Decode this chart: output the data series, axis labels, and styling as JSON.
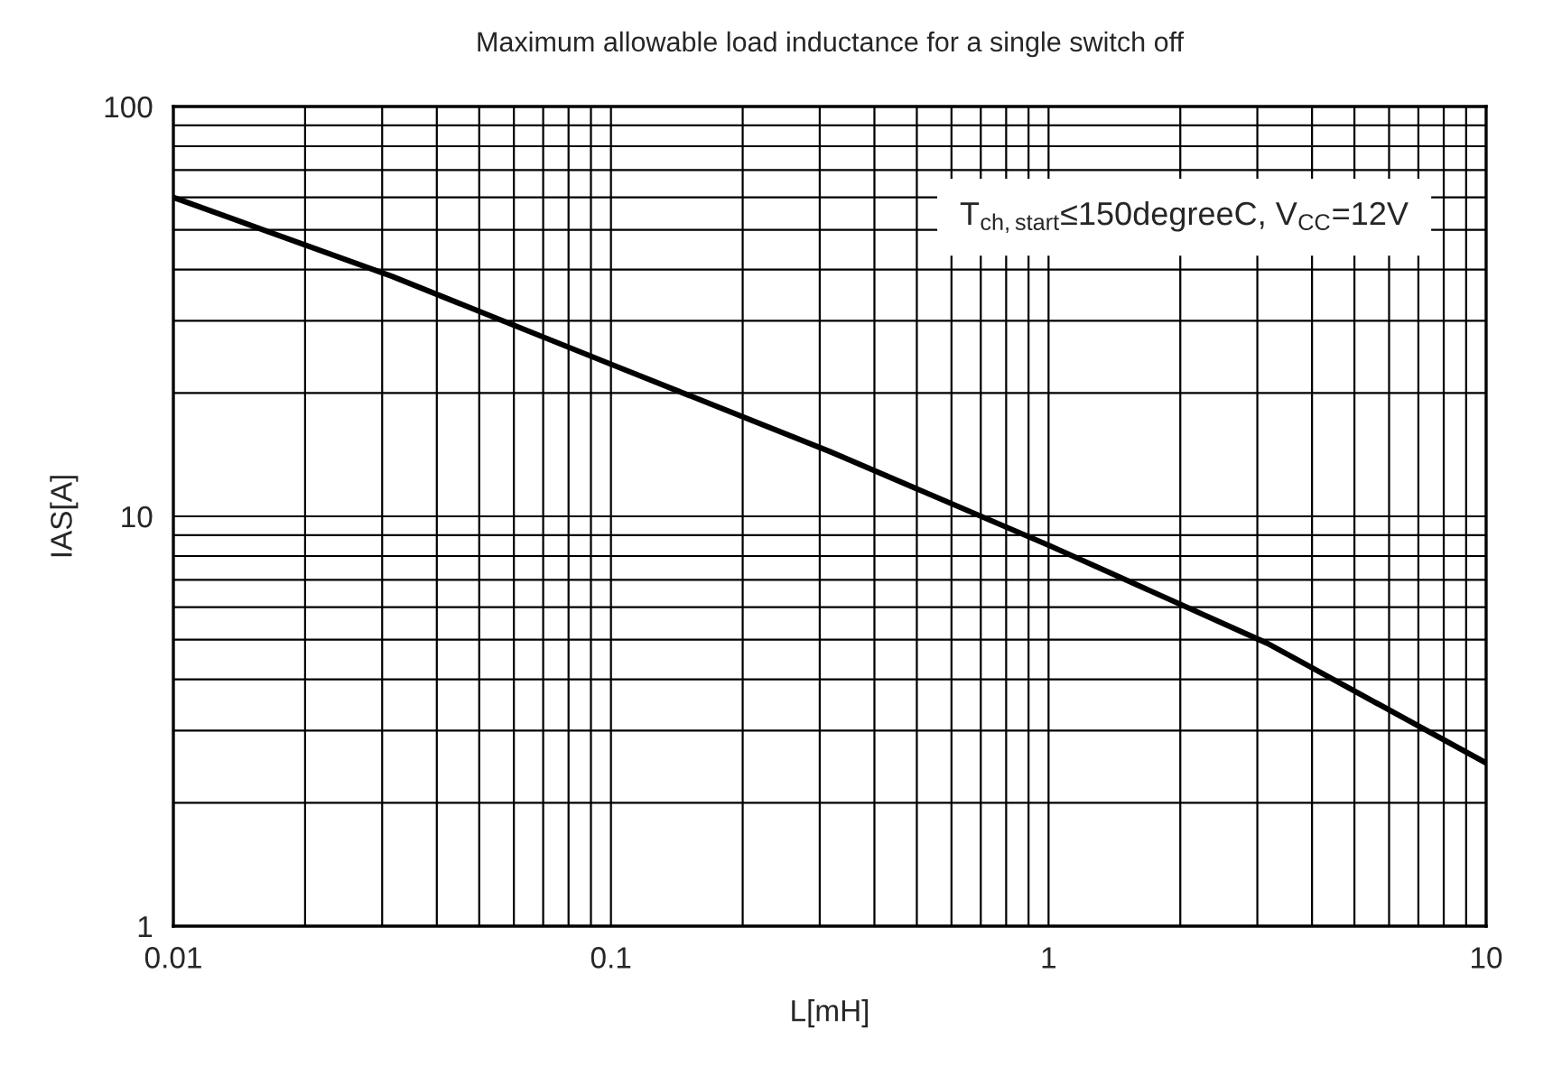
{
  "chart_data": {
    "type": "line",
    "title": "Maximum allowable load inductance for a single switch off",
    "xlabel": "L[mH]",
    "ylabel": "IAS[A]",
    "annotations": [
      "T$_{ch,start}$≤150degreeC, V$_{CC}$=12V"
    ],
    "x": [
      0.01,
      0.0316,
      0.1,
      0.316,
      1,
      3.16,
      10
    ],
    "series": [
      {
        "color": "#000000",
        "values": [
          60,
          38.5,
          23.5,
          14.4,
          8.5,
          4.9,
          2.5
        ]
      }
    ],
    "log": "xy",
    "xlim": [
      0.01,
      10
    ],
    "ylim": [
      1,
      100
    ],
    "xticks": [
      0.01,
      0.1,
      1,
      10
    ],
    "yticks": [
      1,
      10,
      100
    ],
    "grid": true,
    "marker": "none",
    "line_style": "solid"
  }
}
